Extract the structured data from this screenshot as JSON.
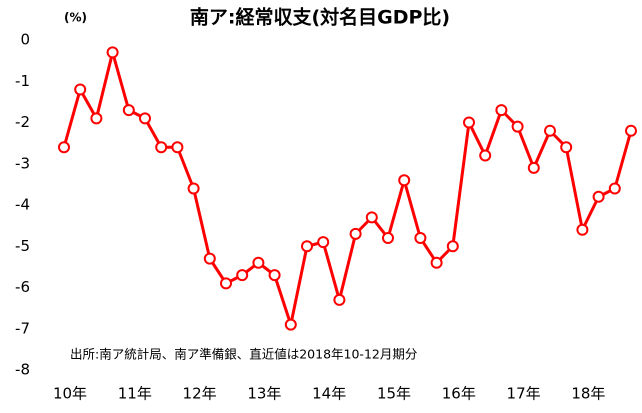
{
  "chart_data": {
    "type": "line",
    "title": "南ア:経常収支(対名目GDP比)",
    "y_label": "(%)",
    "annotation": "出所:南ア統計局、南ア準備銀、直近値は2018年10-12月期分",
    "categories": [
      "10年",
      null,
      null,
      null,
      "11年",
      null,
      null,
      null,
      "12年",
      null,
      null,
      null,
      "13年",
      null,
      null,
      null,
      "14年",
      null,
      null,
      null,
      "15年",
      null,
      null,
      null,
      "16年",
      null,
      null,
      null,
      "17年",
      null,
      null,
      null,
      "18年",
      null,
      null,
      null
    ],
    "series": [
      {
        "name": "経常収支",
        "color": "#ff0000",
        "values": [
          -2.6,
          -1.2,
          -1.9,
          -0.3,
          -1.7,
          -1.9,
          -2.6,
          -2.6,
          -3.6,
          -5.3,
          -5.9,
          -5.7,
          -5.4,
          -5.7,
          -6.9,
          -5.0,
          -4.9,
          -6.3,
          -4.7,
          -4.3,
          -4.8,
          -3.4,
          -4.8,
          -5.4,
          -5.0,
          -2.0,
          -2.8,
          -1.7,
          -2.1,
          -3.1,
          -2.2,
          -2.6,
          -4.6,
          -3.8,
          -3.6,
          -2.2
        ]
      }
    ],
    "ylim": [
      -8,
      0
    ],
    "yticks": [
      0,
      -1,
      -2,
      -3,
      -4,
      -5,
      -6,
      -7,
      -8
    ],
    "grid": false
  }
}
